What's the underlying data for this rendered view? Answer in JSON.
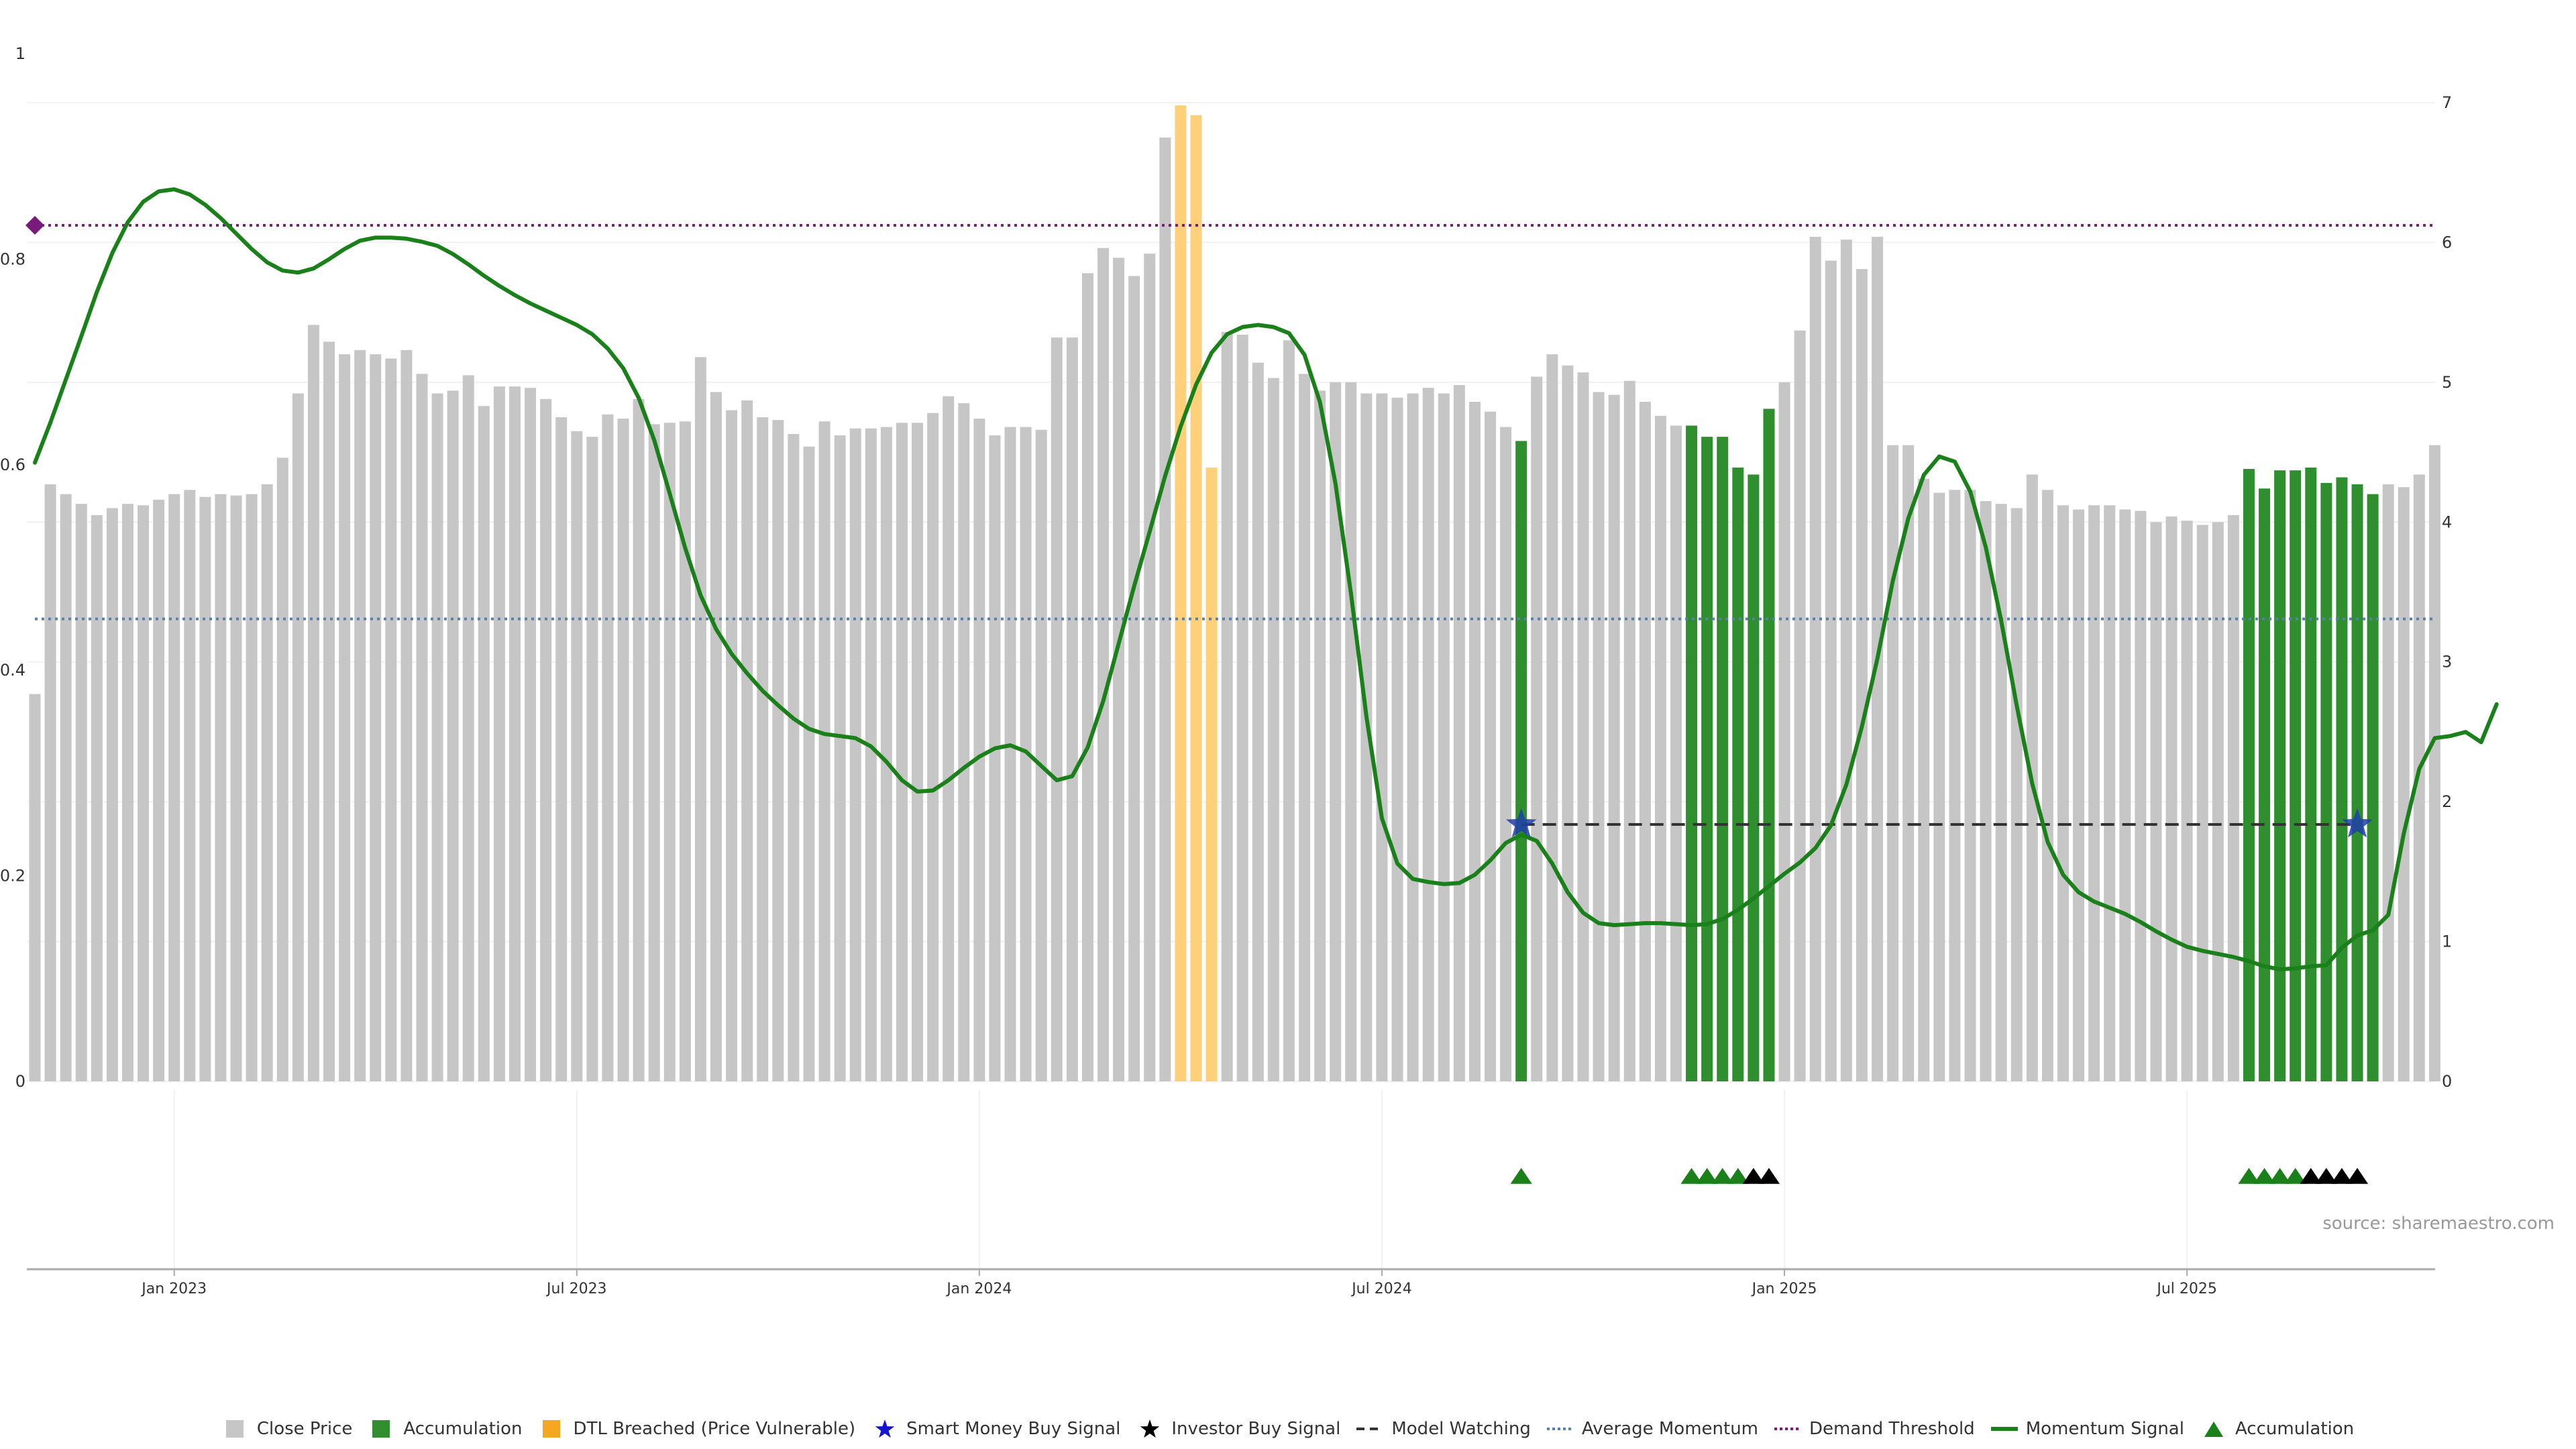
{
  "source_text": "source: sharemaestro.com",
  "colors": {
    "close": "#c6c6c6",
    "accumulation": "#2f8f2f",
    "dtl": "#ffd07a",
    "momentum": "#1a801a",
    "smart": "#1f3fa8",
    "demand": "#7a1a7a",
    "avg": "#5a7fa8",
    "watch": "#333333"
  },
  "legend": [
    {
      "key": "close",
      "label": "Close Price"
    },
    {
      "key": "accum",
      "label": "Accumulation"
    },
    {
      "key": "dtl",
      "label": "DTL Breached (Price Vulnerable)"
    },
    {
      "key": "smart",
      "label": "Smart Money Buy Signal"
    },
    {
      "key": "investor",
      "label": "Investor Buy Signal"
    },
    {
      "key": "watch",
      "label": "Model Watching"
    },
    {
      "key": "avg",
      "label": "Average Momentum"
    },
    {
      "key": "demand",
      "label": "Demand Threshold"
    },
    {
      "key": "momentum",
      "label": "Momentum Signal"
    },
    {
      "key": "accum_tri",
      "label": "Accumulation"
    }
  ],
  "chart_data": {
    "type": "bar",
    "x_ticks": [
      {
        "label": "Jan 2023",
        "index": 9
      },
      {
        "label": "Jul 2023",
        "index": 35
      },
      {
        "label": "Jan 2024",
        "index": 61
      },
      {
        "label": "Jul 2024",
        "index": 87
      },
      {
        "label": "Jan 2025",
        "index": 113
      },
      {
        "label": "Jul 2025",
        "index": 139
      }
    ],
    "left_axis": {
      "ticks": [
        "0",
        "0.2",
        "0.4",
        "0.6",
        "0.8",
        "1"
      ],
      "range": [
        0,
        1
      ]
    },
    "right_axis": {
      "ticks": [
        "0",
        "1",
        "2",
        "3",
        "4",
        "5",
        "6",
        "7"
      ],
      "range": [
        0,
        7.35
      ]
    },
    "close_price": [
      2.77,
      4.27,
      4.2,
      4.13,
      4.05,
      4.1,
      4.13,
      4.12,
      4.16,
      4.2,
      4.23,
      4.18,
      4.2,
      4.19,
      4.2,
      4.27,
      4.46,
      4.92,
      5.41,
      5.29,
      5.2,
      5.23,
      5.2,
      5.17,
      5.23,
      5.06,
      4.92,
      4.94,
      5.05,
      4.83,
      4.97,
      4.97,
      4.96,
      4.88,
      4.75,
      4.65,
      4.61,
      4.77,
      4.74,
      4.88,
      4.7,
      4.71,
      4.72,
      5.18,
      4.93,
      4.8,
      4.87,
      4.75,
      4.73,
      4.63,
      4.54,
      4.72,
      4.62,
      4.67,
      4.67,
      4.68,
      4.71,
      4.71,
      4.78,
      4.9,
      4.85,
      4.74,
      4.62,
      4.68,
      4.68,
      4.66,
      5.32,
      5.32,
      5.78,
      5.96,
      5.89,
      5.76,
      5.92,
      6.75,
      6.98,
      6.91,
      4.39,
      5.36,
      5.34,
      5.14,
      5.03,
      5.3,
      5.06,
      4.94,
      5.0,
      5.0,
      4.92,
      4.92,
      4.89,
      4.92,
      4.96,
      4.92,
      4.98,
      4.86,
      4.79,
      4.68,
      4.58,
      5.04,
      5.2,
      5.12,
      5.07,
      4.93,
      4.91,
      5.01,
      4.86,
      4.76,
      4.69,
      4.69,
      4.61,
      4.61,
      4.39,
      4.34,
      4.81,
      5.0,
      5.37,
      6.04,
      5.87,
      6.02,
      5.81,
      6.04,
      4.55,
      4.55,
      4.31,
      4.21,
      4.23,
      4.23,
      4.15,
      4.13,
      4.1,
      4.34,
      4.23,
      4.12,
      4.09,
      4.12,
      4.12,
      4.09,
      4.08,
      4.0,
      4.04,
      4.01,
      3.98,
      4.0,
      4.05,
      4.38,
      4.24,
      4.37,
      4.37,
      4.39,
      4.28,
      4.32,
      4.27,
      4.2,
      4.27,
      4.25,
      4.34,
      4.55
    ],
    "accumulation_bars": [
      96,
      107,
      108,
      109,
      110,
      111,
      112,
      143,
      144,
      145,
      146,
      147,
      148,
      149,
      150,
      151
    ],
    "dtl_bars": [
      74,
      75,
      76
    ],
    "momentum_signal": [
      0.602,
      0.641,
      0.683,
      0.725,
      0.768,
      0.806,
      0.836,
      0.856,
      0.866,
      0.868,
      0.863,
      0.853,
      0.84,
      0.825,
      0.81,
      0.797,
      0.789,
      0.787,
      0.791,
      0.8,
      0.81,
      0.818,
      0.821,
      0.821,
      0.82,
      0.817,
      0.813,
      0.805,
      0.795,
      0.784,
      0.774,
      0.765,
      0.757,
      0.75,
      0.743,
      0.736,
      0.727,
      0.713,
      0.694,
      0.665,
      0.624,
      0.572,
      0.519,
      0.473,
      0.44,
      0.416,
      0.397,
      0.38,
      0.366,
      0.353,
      0.343,
      0.338,
      0.336,
      0.334,
      0.326,
      0.311,
      0.293,
      0.282,
      0.283,
      0.293,
      0.305,
      0.316,
      0.324,
      0.327,
      0.321,
      0.307,
      0.293,
      0.297,
      0.325,
      0.37,
      0.426,
      0.482,
      0.535,
      0.589,
      0.637,
      0.678,
      0.709,
      0.727,
      0.734,
      0.736,
      0.734,
      0.728,
      0.707,
      0.661,
      0.582,
      0.475,
      0.355,
      0.256,
      0.212,
      0.197,
      0.194,
      0.192,
      0.193,
      0.201,
      0.215,
      0.232,
      0.24,
      0.234,
      0.212,
      0.184,
      0.164,
      0.154,
      0.152,
      0.153,
      0.154,
      0.154,
      0.153,
      0.152,
      0.153,
      0.158,
      0.167,
      0.178,
      0.19,
      0.202,
      0.213,
      0.227,
      0.249,
      0.289,
      0.345,
      0.411,
      0.487,
      0.548,
      0.59,
      0.608,
      0.603,
      0.574,
      0.52,
      0.448,
      0.366,
      0.29,
      0.233,
      0.201,
      0.184,
      0.175,
      0.169,
      0.163,
      0.155,
      0.146,
      0.138,
      0.131,
      0.127,
      0.124,
      0.121,
      0.117,
      0.112,
      0.109,
      0.11,
      0.112,
      0.113,
      0.13,
      0.142,
      0.147,
      0.162,
      0.241,
      0.304,
      0.334,
      0.336,
      0.34,
      0.33,
      0.367
    ],
    "average_momentum": 0.45,
    "demand_threshold": 0.833,
    "model_watching": {
      "level": 0.25,
      "start": 96,
      "end": 150
    },
    "smart_money_signals": [
      {
        "index": 96,
        "value": 0.25
      },
      {
        "index": 150,
        "value": 0.25
      }
    ],
    "accumulation_markers": [
      96,
      107,
      108,
      109,
      110,
      143,
      144,
      145,
      146
    ],
    "investor_markers": [
      111,
      112,
      147,
      148,
      149,
      150
    ]
  }
}
